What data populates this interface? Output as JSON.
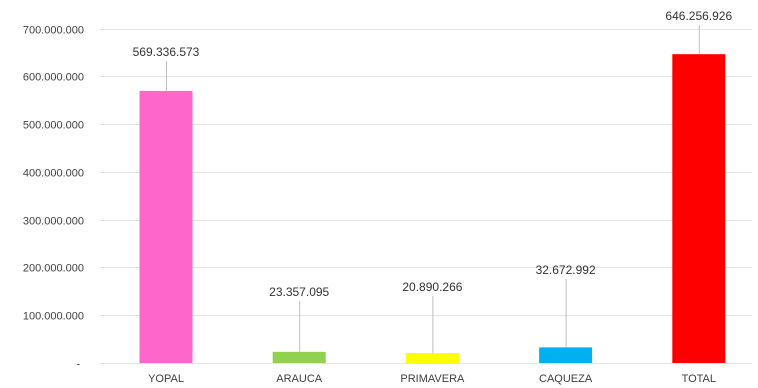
{
  "chart_data": {
    "type": "bar",
    "categories": [
      "YOPAL",
      "ARAUCA",
      "PRIMAVERA",
      "CAQUEZA",
      "TOTAL"
    ],
    "values": [
      569336573,
      23357095,
      20890266,
      32672992,
      646256926
    ],
    "value_labels": [
      "569.336.573",
      "23.357.095",
      "20.890.266",
      "32.672.992",
      "646.256.926"
    ],
    "colors": [
      "#ff66cc",
      "#92d050",
      "#ffff00",
      "#00b0f0",
      "#ff0000"
    ],
    "ylim": [
      0,
      700000000
    ],
    "y_ticks": [
      0,
      100000000,
      200000000,
      300000000,
      400000000,
      500000000,
      600000000,
      700000000
    ],
    "y_tick_labels": [
      "-",
      "100.000.000",
      "200.000.000",
      "300.000.000",
      "400.000.000",
      "500.000.000",
      "600.000.000",
      "700.000.000"
    ],
    "title": "",
    "xlabel": "",
    "ylabel": "",
    "grid": true,
    "legend": "none"
  }
}
